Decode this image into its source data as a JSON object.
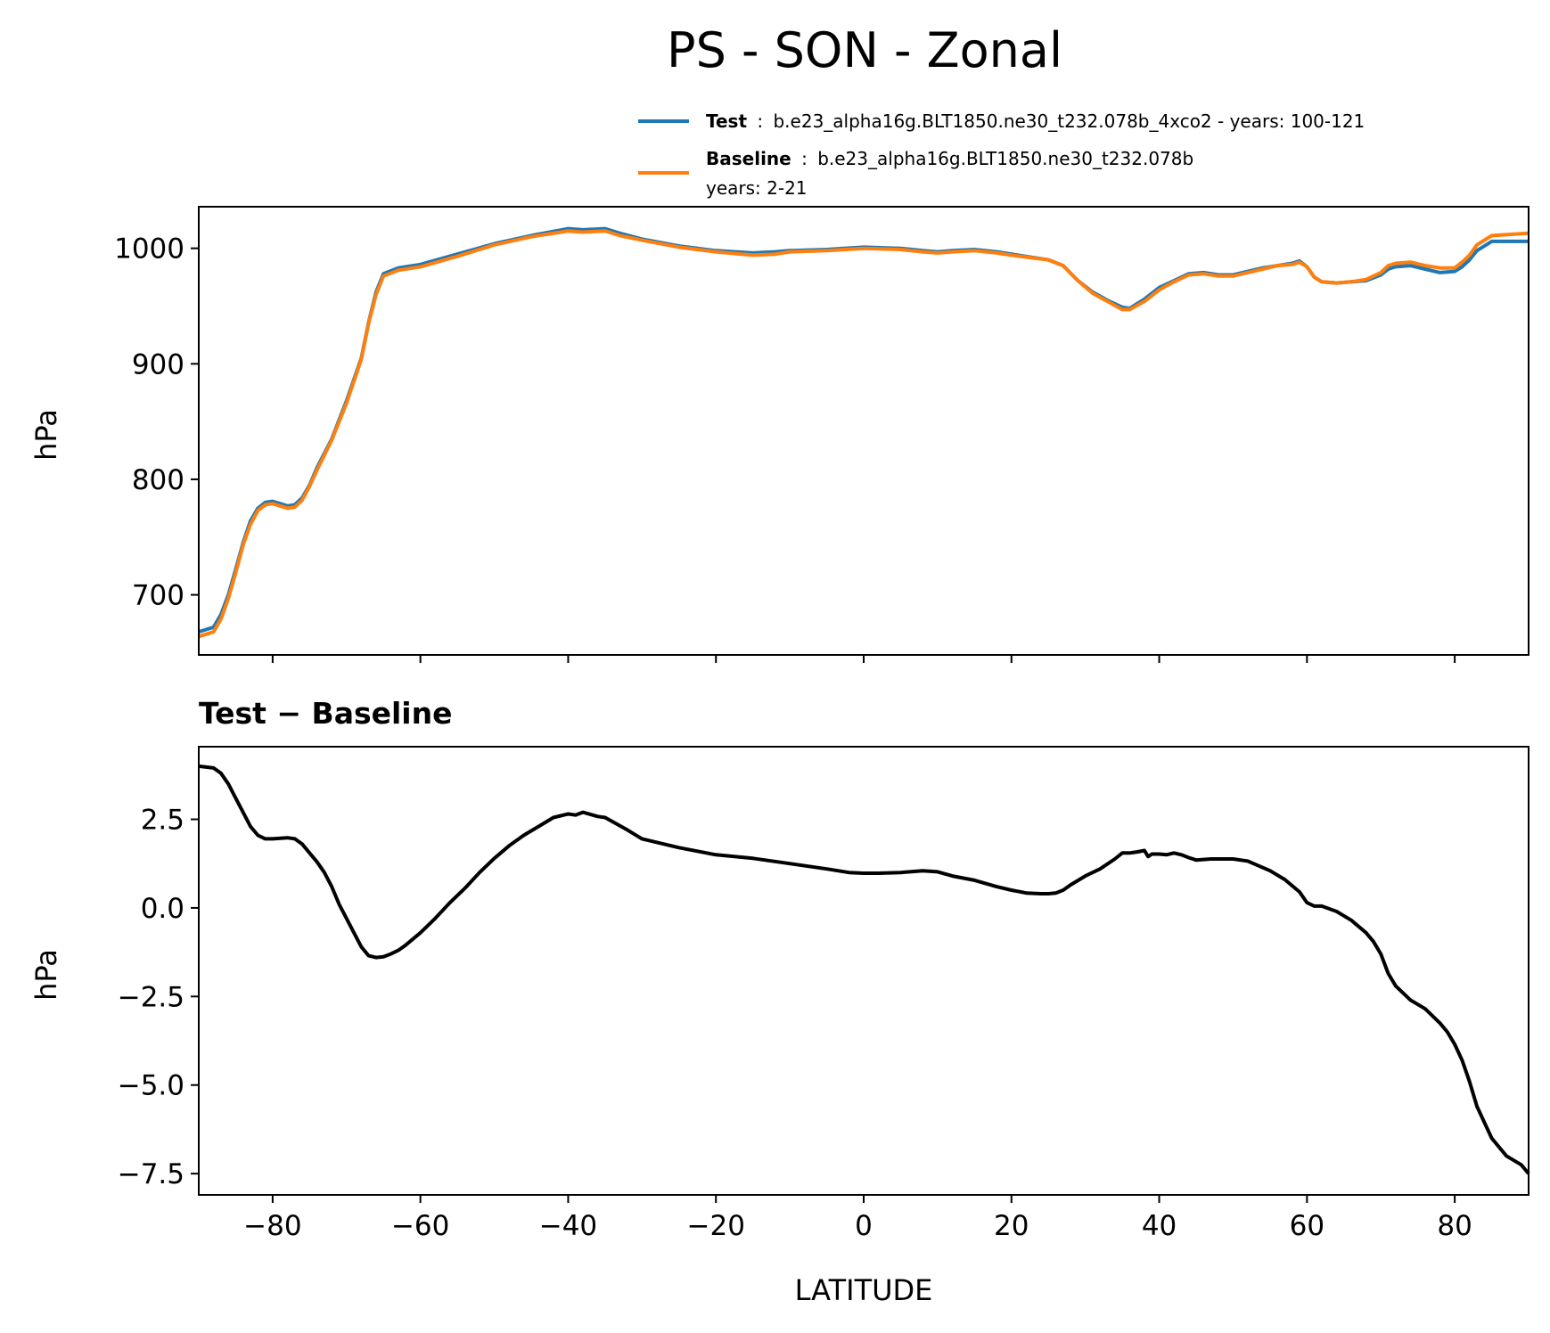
{
  "figure": {
    "title": "PS - SON - Zonal"
  },
  "legend": {
    "entries": [
      {
        "name": "Test",
        "separator": ":",
        "text": "b.e23_alpha16g.BLT1850.ne30_t232.078b_4xco2 - years: 100-121",
        "text2": "",
        "color": "#1f77b4"
      },
      {
        "name": "Baseline",
        "separator": ":",
        "text": "b.e23_alpha16g.BLT1850.ne30_t232.078b",
        "text2": "years: 2-21",
        "color": "#ff7f0e"
      }
    ]
  },
  "chart_data": [
    {
      "type": "line",
      "title": "",
      "xlabel": "",
      "ylabel": "hPa",
      "xlim": [
        -90,
        90
      ],
      "ylim": [
        648,
        1036
      ],
      "yticks": [
        700,
        800,
        900,
        1000
      ],
      "ytick_labels": [
        "700",
        "800",
        "900",
        "1000"
      ],
      "xticks": [
        -80,
        -60,
        -40,
        -20,
        0,
        20,
        40,
        60,
        80
      ],
      "xtick_labels": [
        "",
        "",
        "",
        "",
        "",
        "",
        "",
        "",
        ""
      ],
      "grid": false,
      "series": [
        {
          "name": "Test",
          "color": "#1f77b4",
          "x": [
            -90,
            -88,
            -87,
            -86,
            -85,
            -84,
            -83,
            -82,
            -81,
            -80,
            -79,
            -78,
            -77,
            -76,
            -75,
            -74,
            -72,
            -70,
            -68,
            -67,
            -66,
            -65,
            -63,
            -60,
            -55,
            -50,
            -45,
            -40,
            -38,
            -35,
            -33,
            -30,
            -25,
            -20,
            -15,
            -12,
            -10,
            -5,
            0,
            5,
            8,
            10,
            12,
            15,
            18,
            20,
            25,
            27,
            29,
            31,
            33,
            35,
            36,
            38,
            40,
            42,
            44,
            46,
            48,
            50,
            52,
            54,
            56,
            58,
            59,
            60,
            61,
            62,
            64,
            66,
            68,
            70,
            71,
            72,
            74,
            76,
            78,
            80,
            81,
            82,
            83,
            85,
            90
          ],
          "values": [
            668,
            672,
            683,
            700,
            722,
            745,
            764,
            775,
            780,
            781,
            779,
            777,
            778,
            784,
            795,
            810,
            835,
            868,
            905,
            936,
            962,
            978,
            983,
            986,
            995,
            1004,
            1011,
            1017,
            1016,
            1017,
            1013,
            1008,
            1002,
            998,
            996,
            997,
            998,
            999,
            1001,
            1000,
            998,
            997,
            998,
            999,
            997,
            995,
            990,
            985,
            972,
            962,
            955,
            949,
            948,
            956,
            966,
            972,
            978,
            979,
            977,
            977,
            980,
            983,
            985,
            987,
            989,
            984,
            975,
            971,
            970,
            971,
            972,
            977,
            982,
            984,
            985,
            982,
            979,
            980,
            984,
            990,
            998,
            1006,
            1006
          ]
        },
        {
          "name": "Baseline",
          "color": "#ff7f0e",
          "x": [
            -90,
            -88,
            -87,
            -86,
            -85,
            -84,
            -83,
            -82,
            -81,
            -80,
            -79,
            -78,
            -77,
            -76,
            -75,
            -74,
            -72,
            -70,
            -68,
            -67,
            -66,
            -65,
            -63,
            -60,
            -55,
            -50,
            -45,
            -40,
            -38,
            -35,
            -33,
            -30,
            -25,
            -20,
            -15,
            -12,
            -10,
            -5,
            0,
            5,
            8,
            10,
            12,
            15,
            18,
            20,
            25,
            27,
            29,
            31,
            33,
            35,
            36,
            38,
            40,
            42,
            44,
            46,
            48,
            50,
            52,
            54,
            56,
            58,
            59,
            60,
            61,
            62,
            64,
            66,
            68,
            70,
            71,
            72,
            74,
            76,
            78,
            80,
            81,
            82,
            83,
            85,
            90
          ],
          "values": [
            664,
            668,
            679,
            697,
            719,
            743,
            761,
            773,
            778,
            779,
            777,
            775,
            776,
            782,
            794,
            808,
            834,
            866,
            904,
            935,
            960,
            976,
            981,
            984,
            993,
            1003,
            1010,
            1015,
            1014,
            1015,
            1011,
            1007,
            1001,
            997,
            994,
            995,
            997,
            998,
            1000,
            999,
            997,
            996,
            997,
            998,
            996,
            994,
            990,
            985,
            972,
            961,
            954,
            947,
            947,
            954,
            964,
            971,
            977,
            978,
            976,
            976,
            979,
            982,
            985,
            986,
            988,
            984,
            975,
            971,
            970,
            971,
            973,
            979,
            985,
            987,
            988,
            985,
            983,
            983,
            988,
            994,
            1003,
            1011,
            1013
          ]
        }
      ]
    },
    {
      "type": "line",
      "title": "Test − Baseline",
      "xlabel": "LATITUDE",
      "ylabel": "hPa",
      "xlim": [
        -90,
        90
      ],
      "ylim": [
        -8.1,
        4.55
      ],
      "yticks": [
        -7.5,
        -5.0,
        -2.5,
        0.0,
        2.5
      ],
      "ytick_labels": [
        "−7.5",
        "−5.0",
        "−2.5",
        "0.0",
        "2.5"
      ],
      "xticks": [
        -80,
        -60,
        -40,
        -20,
        0,
        20,
        40,
        60,
        80
      ],
      "xtick_labels": [
        "−80",
        "−60",
        "−40",
        "−20",
        "0",
        "20",
        "40",
        "60",
        "80"
      ],
      "grid": false,
      "series": [
        {
          "name": "Test − Baseline",
          "color": "#000000",
          "x": [
            -90,
            -88,
            -87,
            -86,
            -85,
            -84,
            -83,
            -82,
            -81,
            -80,
            -78,
            -77,
            -76,
            -74,
            -73,
            -72,
            -71,
            -70,
            -69,
            -68,
            -67,
            -66,
            -65,
            -64,
            -63,
            -62,
            -60,
            -58,
            -56,
            -54,
            -52,
            -50,
            -48,
            -46,
            -44,
            -42,
            -40,
            -39,
            -38,
            -36,
            -35,
            -32,
            -30,
            -25,
            -20,
            -15,
            -10,
            -5,
            -2,
            0,
            2,
            5,
            8,
            10,
            12,
            15,
            18,
            20,
            22,
            24,
            25,
            26,
            27,
            28,
            30,
            32,
            34,
            35,
            36,
            37,
            38,
            38.5,
            39,
            40,
            41,
            42,
            43,
            44,
            45,
            47,
            50,
            52,
            55,
            57,
            59,
            60,
            61,
            62,
            64,
            66,
            68,
            69,
            70,
            71,
            72,
            74,
            76,
            78,
            79,
            80,
            81,
            82,
            83,
            85,
            87,
            89,
            90
          ],
          "values": [
            4.0,
            3.95,
            3.8,
            3.5,
            3.1,
            2.7,
            2.3,
            2.05,
            1.95,
            1.95,
            1.98,
            1.95,
            1.8,
            1.3,
            1.0,
            0.6,
            0.1,
            -0.3,
            -0.7,
            -1.1,
            -1.35,
            -1.4,
            -1.38,
            -1.3,
            -1.2,
            -1.05,
            -0.7,
            -0.3,
            0.15,
            0.55,
            1.0,
            1.4,
            1.75,
            2.05,
            2.3,
            2.55,
            2.65,
            2.62,
            2.7,
            2.58,
            2.55,
            2.2,
            1.95,
            1.7,
            1.5,
            1.4,
            1.25,
            1.1,
            1.0,
            0.98,
            0.98,
            1.0,
            1.05,
            1.02,
            0.9,
            0.78,
            0.6,
            0.5,
            0.42,
            0.4,
            0.4,
            0.42,
            0.5,
            0.65,
            0.9,
            1.1,
            1.38,
            1.55,
            1.55,
            1.58,
            1.62,
            1.45,
            1.52,
            1.52,
            1.5,
            1.55,
            1.5,
            1.42,
            1.35,
            1.38,
            1.38,
            1.32,
            1.05,
            0.8,
            0.45,
            0.15,
            0.05,
            0.05,
            -0.1,
            -0.35,
            -0.7,
            -0.95,
            -1.3,
            -1.85,
            -2.2,
            -2.6,
            -2.85,
            -3.25,
            -3.5,
            -3.85,
            -4.3,
            -4.9,
            -5.6,
            -6.5,
            -7.0,
            -7.25,
            -7.5
          ]
        }
      ]
    }
  ]
}
